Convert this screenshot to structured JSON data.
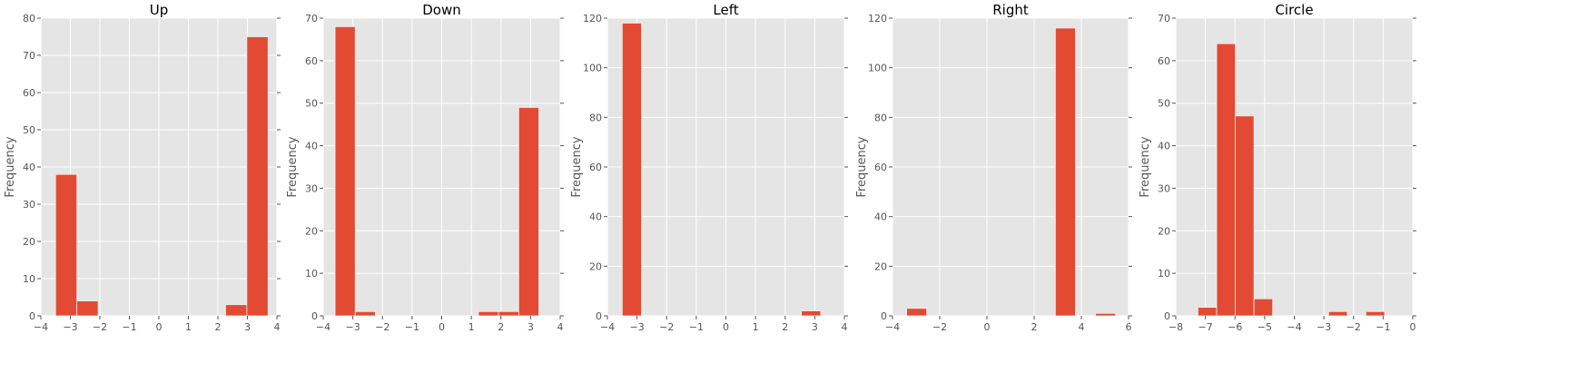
{
  "chart_data": [
    {
      "type": "histogram",
      "title": "Up",
      "ylabel": "Frequency",
      "xlim": [
        -4,
        4
      ],
      "ylim": [
        0,
        80
      ],
      "xticks": [
        "−4",
        "−3",
        "−2",
        "−1",
        "0",
        "1",
        "2",
        "3",
        "4"
      ],
      "yticks": [
        "0",
        "10",
        "20",
        "30",
        "40",
        "50",
        "60",
        "70",
        "80"
      ],
      "bins": [
        {
          "x0": -3.5,
          "x1": -2.78,
          "count": 38
        },
        {
          "x0": -2.78,
          "x1": -2.06,
          "count": 4
        },
        {
          "x0": 2.26,
          "x1": 2.98,
          "count": 3
        },
        {
          "x0": 2.98,
          "x1": 3.7,
          "count": 75
        }
      ]
    },
    {
      "type": "histogram",
      "title": "Down",
      "ylabel": "Frequency",
      "xlim": [
        -4,
        4
      ],
      "ylim": [
        0,
        70
      ],
      "xticks": [
        "−4",
        "−3",
        "−2",
        "−1",
        "0",
        "1",
        "2",
        "3",
        "4"
      ],
      "yticks": [
        "0",
        "10",
        "20",
        "30",
        "40",
        "50",
        "60",
        "70"
      ],
      "bins": [
        {
          "x0": -3.6,
          "x1": -2.92,
          "count": 68
        },
        {
          "x0": -2.92,
          "x1": -2.24,
          "count": 1
        },
        {
          "x0": 1.24,
          "x1": 1.92,
          "count": 1
        },
        {
          "x0": 1.92,
          "x1": 2.6,
          "count": 1
        },
        {
          "x0": 2.6,
          "x1": 3.28,
          "count": 49
        }
      ]
    },
    {
      "type": "histogram",
      "title": "Left",
      "ylabel": "Frequency",
      "xlim": [
        -4,
        4
      ],
      "ylim": [
        0,
        120
      ],
      "xticks": [
        "−4",
        "−3",
        "−2",
        "−1",
        "0",
        "1",
        "2",
        "3",
        "4"
      ],
      "yticks": [
        "0",
        "20",
        "40",
        "60",
        "80",
        "100",
        "120"
      ],
      "bins": [
        {
          "x0": -3.5,
          "x1": -2.85,
          "count": 118
        },
        {
          "x0": 2.55,
          "x1": 3.2,
          "count": 2
        }
      ]
    },
    {
      "type": "histogram",
      "title": "Right",
      "ylabel": "Frequency",
      "xlim": [
        -4,
        6
      ],
      "ylim": [
        0,
        120
      ],
      "xticks": [
        "−4",
        "−2",
        "0",
        "2",
        "4",
        "6"
      ],
      "yticks": [
        "0",
        "20",
        "40",
        "60",
        "80",
        "100",
        "120"
      ],
      "bins": [
        {
          "x0": -3.4,
          "x1": -2.55,
          "count": 3
        },
        {
          "x0": 2.9,
          "x1": 3.75,
          "count": 116
        },
        {
          "x0": 4.6,
          "x1": 5.45,
          "count": 1
        }
      ]
    },
    {
      "type": "histogram",
      "title": "Circle",
      "ylabel": "Frequency",
      "xlim": [
        -8,
        0
      ],
      "ylim": [
        0,
        70
      ],
      "xticks": [
        "−8",
        "−7",
        "−6",
        "−5",
        "−4",
        "−3",
        "−2",
        "−1",
        "0"
      ],
      "yticks": [
        "0",
        "10",
        "20",
        "30",
        "40",
        "50",
        "60",
        "70"
      ],
      "bins": [
        {
          "x0": -7.25,
          "x1": -6.62,
          "count": 2
        },
        {
          "x0": -6.62,
          "x1": -5.99,
          "count": 64
        },
        {
          "x0": -5.99,
          "x1": -5.36,
          "count": 47
        },
        {
          "x0": -5.36,
          "x1": -4.73,
          "count": 4
        },
        {
          "x0": -2.84,
          "x1": -2.21,
          "count": 1
        },
        {
          "x0": -1.58,
          "x1": -0.95,
          "count": 1
        }
      ]
    }
  ],
  "colors": {
    "plot_background": "#e5e5e5",
    "grid": "#ffffff",
    "bar_fill": "#e24a33",
    "bar_edge": "#eeeeee",
    "tick_label": "#555555",
    "title": "#000000"
  }
}
